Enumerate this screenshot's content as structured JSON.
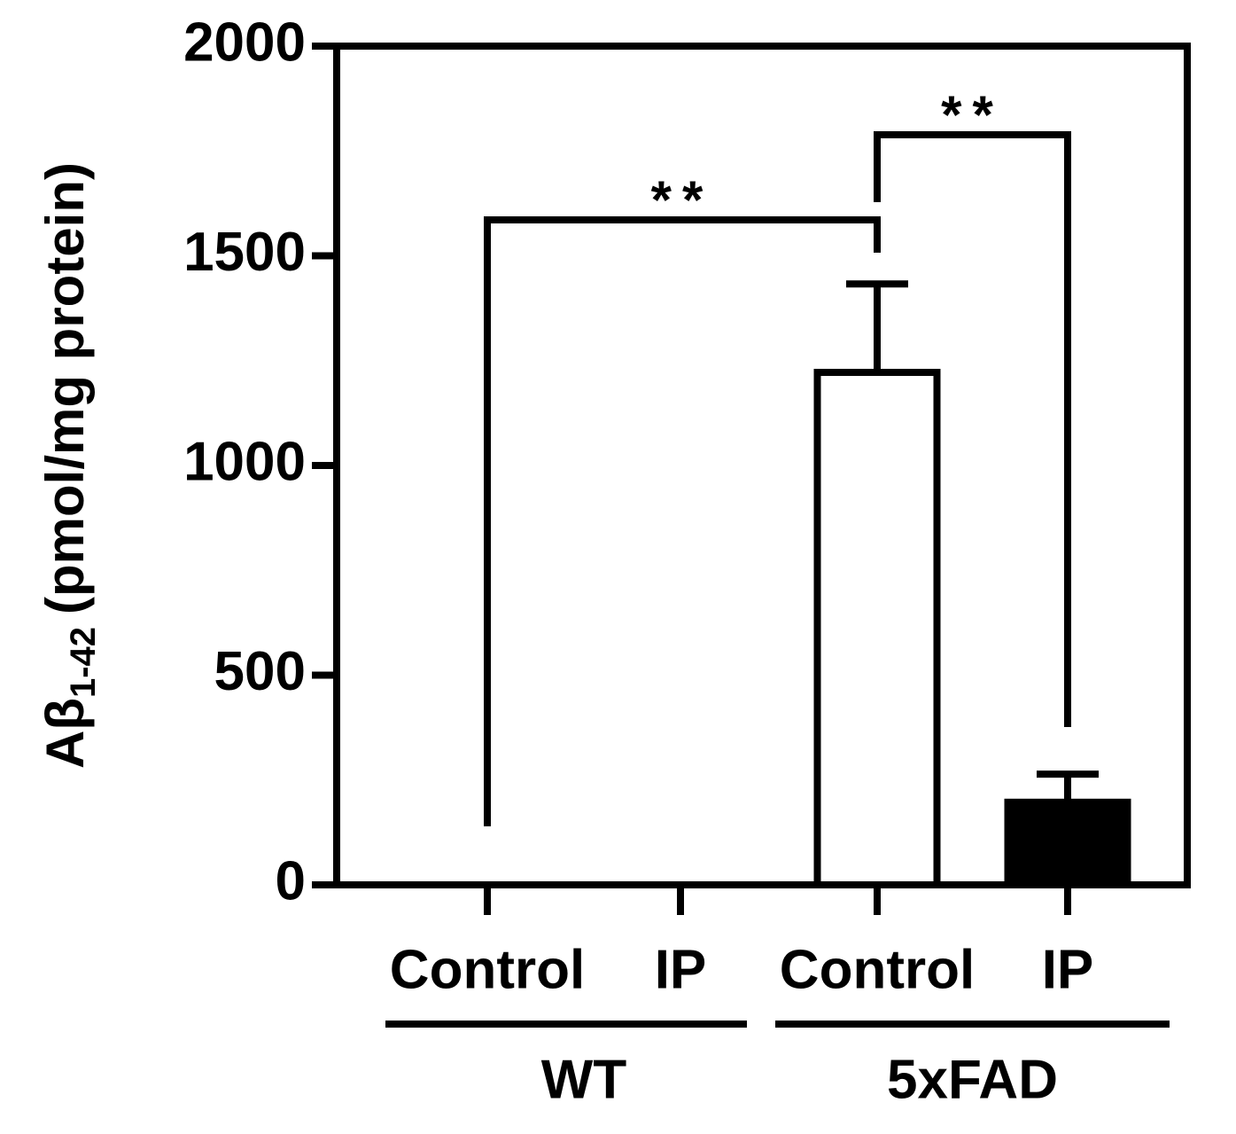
{
  "chart_data": {
    "type": "bar",
    "ylabel_parts": [
      "Aβ",
      "1-42",
      "(pmol/mg protein)"
    ],
    "categories": [
      "Control",
      "IP",
      "Control",
      "IP"
    ],
    "values": [
      0,
      0,
      1222,
      197
    ],
    "errors": [
      0,
      0,
      211,
      67
    ],
    "colors": [
      "#ffffff",
      "#ffffff",
      "#ffffff",
      "#000000"
    ],
    "groups": [
      {
        "label": "WT",
        "members": [
          0,
          1
        ]
      },
      {
        "label": "5xFAD",
        "members": [
          2,
          3
        ]
      }
    ],
    "comparisons": [
      {
        "pair": [
          0,
          2
        ],
        "text": "**"
      },
      {
        "pair": [
          2,
          3
        ],
        "text": "**"
      }
    ],
    "ylim": [
      0,
      2000
    ],
    "yticks": [
      0,
      500,
      1000,
      1500,
      2000
    ]
  }
}
